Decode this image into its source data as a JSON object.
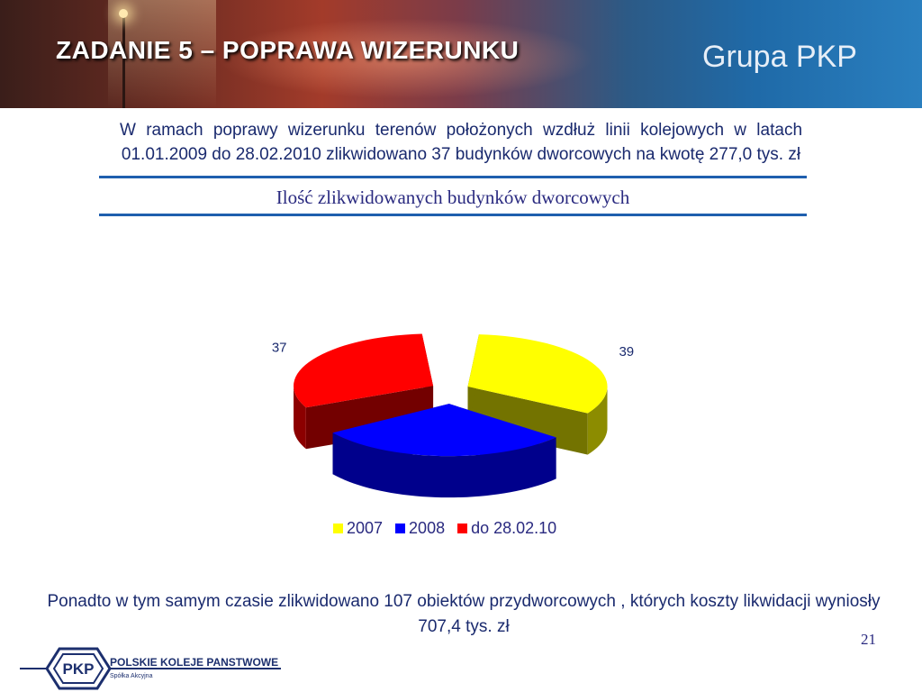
{
  "header": {
    "title": "ZADANIE 5 –  POPRAWA WIZERUNKU",
    "brand": "Grupa PKP"
  },
  "intro": {
    "line1": "W  ramach  poprawy  wizerunku terenów położonych wzdłuż linii kolejowych w latach",
    "line2": "01.01.2009 do 28.02.2010  zlikwidowano  37 budynków dworcowych  na kwotę  277,0 tys. zł"
  },
  "chart_data": {
    "type": "pie",
    "title": "Ilość zlikwidowanych budynków dworcowych",
    "series": [
      {
        "name": "2007",
        "value": 39,
        "color": "#ffff00"
      },
      {
        "name": "2008",
        "value": 36,
        "color": "#0000ff"
      },
      {
        "name": "do 28.02.10",
        "value": 37,
        "color": "#ff0000"
      }
    ],
    "legend_position": "bottom",
    "exploded": true,
    "three_d": true
  },
  "footer": {
    "text": "Ponadto w tym samym czasie zlikwidowano 107 obiektów przydworcowych , których koszty likwidacji wyniosły 707,4 tys. zł"
  },
  "page_number": "21",
  "logo": {
    "name": "pkp-logo",
    "monogram": "PKP",
    "line1": "POLSKIE KOLEJE PANSTWOWE",
    "line2": "Spółka Akcyjna"
  }
}
